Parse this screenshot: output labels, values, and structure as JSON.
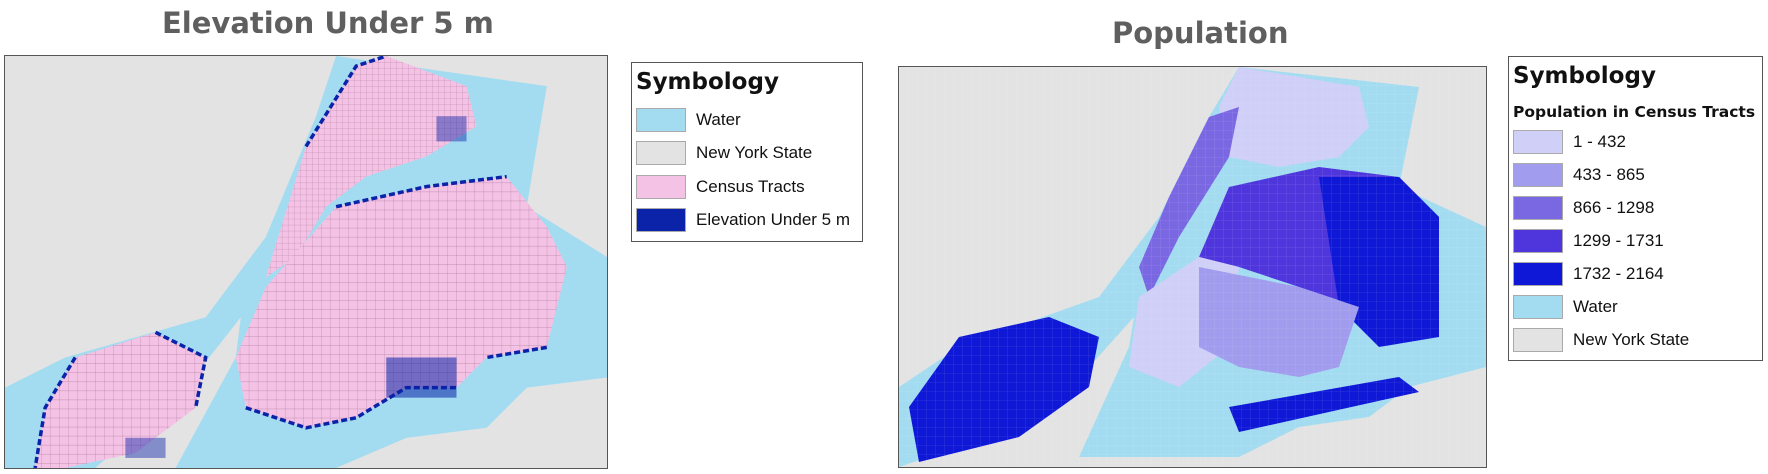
{
  "left_panel": {
    "title": "Elevation Under 5 m",
    "legend": {
      "title": "Symbology",
      "items": [
        {
          "label": "Water",
          "color": "#a3dcf0"
        },
        {
          "label": "New York State",
          "color": "#e3e3e3"
        },
        {
          "label": "Census Tracts",
          "color": "#f4c2e4"
        },
        {
          "label": "Elevation Under 5 m",
          "color": "#0a23a8"
        }
      ]
    }
  },
  "right_panel": {
    "title": "Population",
    "legend": {
      "title": "Symbology",
      "subtitle": "Population in Census Tracts",
      "items": [
        {
          "label": "1 - 432",
          "color": "#cfcff7"
        },
        {
          "label": "433 - 865",
          "color": "#a19ced"
        },
        {
          "label": "866 - 1298",
          "color": "#7a68e3"
        },
        {
          "label": "1299 - 1731",
          "color": "#4f36dc"
        },
        {
          "label": "1732 - 2164",
          "color": "#0f18d6"
        },
        {
          "label": "Water",
          "color": "#a3dcf0"
        },
        {
          "label": "New York State",
          "color": "#e3e3e3"
        }
      ]
    }
  },
  "colors": {
    "water": "#a3dcf0",
    "land": "#e3e3e3",
    "tract": "#f4c2e4",
    "elevation": "#0a23a8",
    "pop1": "#cfcff7",
    "pop2": "#a19ced",
    "pop3": "#7a68e3",
    "pop4": "#4f36dc",
    "pop5": "#0f18d6"
  }
}
